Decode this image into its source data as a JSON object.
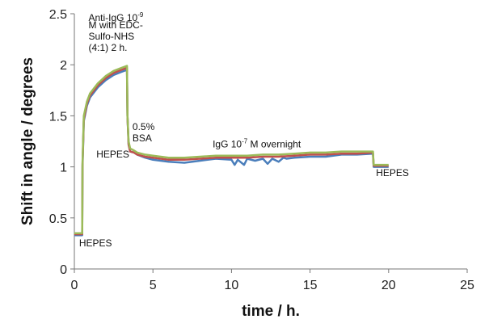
{
  "chart_data": {
    "type": "line",
    "title": "",
    "xlabel": "time / h.",
    "ylabel": "Shift in angle / degrees",
    "xlim": [
      0,
      25
    ],
    "ylim": [
      0,
      2.5
    ],
    "xticks": [
      "0",
      "5",
      "10",
      "15",
      "20",
      "25"
    ],
    "yticks": [
      "0",
      "0.5",
      "1",
      "1.5",
      "2",
      "2.5"
    ],
    "grid": false,
    "legend": "none",
    "series": [
      {
        "color": "#4a7ebb",
        "points": [
          [
            0,
            0.33
          ],
          [
            0.5,
            0.33
          ],
          [
            0.52,
            1.0
          ],
          [
            0.6,
            1.45
          ],
          [
            0.8,
            1.6
          ],
          [
            1.0,
            1.68
          ],
          [
            1.5,
            1.78
          ],
          [
            2.0,
            1.85
          ],
          [
            2.5,
            1.9
          ],
          [
            3.0,
            1.93
          ],
          [
            3.35,
            1.95
          ],
          [
            3.38,
            1.5
          ],
          [
            3.45,
            1.22
          ],
          [
            3.55,
            1.15
          ],
          [
            3.8,
            1.14
          ],
          [
            4.0,
            1.12
          ],
          [
            4.5,
            1.09
          ],
          [
            5.0,
            1.07
          ],
          [
            6.0,
            1.05
          ],
          [
            7.0,
            1.04
          ],
          [
            8.0,
            1.06
          ],
          [
            9.0,
            1.08
          ],
          [
            10.0,
            1.07
          ],
          [
            10.2,
            1.02
          ],
          [
            10.4,
            1.07
          ],
          [
            10.8,
            1.02
          ],
          [
            11.0,
            1.08
          ],
          [
            11.5,
            1.06
          ],
          [
            12.0,
            1.08
          ],
          [
            12.3,
            1.03
          ],
          [
            12.6,
            1.08
          ],
          [
            13.0,
            1.05
          ],
          [
            13.3,
            1.09
          ],
          [
            13.5,
            1.08
          ],
          [
            14.0,
            1.09
          ],
          [
            15.0,
            1.1
          ],
          [
            16.0,
            1.1
          ],
          [
            17.0,
            1.12
          ],
          [
            18.0,
            1.12
          ],
          [
            19.0,
            1.13
          ],
          [
            19.05,
            1.0
          ],
          [
            20.0,
            1.0
          ]
        ]
      },
      {
        "color": "#c0504d",
        "points": [
          [
            0,
            0.34
          ],
          [
            0.5,
            0.34
          ],
          [
            0.52,
            1.02
          ],
          [
            0.6,
            1.47
          ],
          [
            0.8,
            1.62
          ],
          [
            1.0,
            1.7
          ],
          [
            1.5,
            1.8
          ],
          [
            2.0,
            1.87
          ],
          [
            2.5,
            1.92
          ],
          [
            3.0,
            1.95
          ],
          [
            3.35,
            1.97
          ],
          [
            3.38,
            1.5
          ],
          [
            3.45,
            1.22
          ],
          [
            3.55,
            1.15
          ],
          [
            3.8,
            1.14
          ],
          [
            4.0,
            1.12
          ],
          [
            4.5,
            1.1
          ],
          [
            5.0,
            1.09
          ],
          [
            6.0,
            1.07
          ],
          [
            7.0,
            1.07
          ],
          [
            8.0,
            1.08
          ],
          [
            9.0,
            1.09
          ],
          [
            10.0,
            1.09
          ],
          [
            11.0,
            1.09
          ],
          [
            12.0,
            1.1
          ],
          [
            13.0,
            1.1
          ],
          [
            14.0,
            1.11
          ],
          [
            15.0,
            1.12
          ],
          [
            16.0,
            1.12
          ],
          [
            17.0,
            1.13
          ],
          [
            18.0,
            1.13
          ],
          [
            19.0,
            1.14
          ],
          [
            19.05,
            1.01
          ],
          [
            20.0,
            1.01
          ]
        ]
      },
      {
        "color": "#9bbb59",
        "points": [
          [
            0,
            0.35
          ],
          [
            0.5,
            0.35
          ],
          [
            0.52,
            1.04
          ],
          [
            0.6,
            1.5
          ],
          [
            0.8,
            1.64
          ],
          [
            1.0,
            1.72
          ],
          [
            1.5,
            1.82
          ],
          [
            2.0,
            1.89
          ],
          [
            2.5,
            1.94
          ],
          [
            3.0,
            1.97
          ],
          [
            3.35,
            1.99
          ],
          [
            3.38,
            1.5
          ],
          [
            3.45,
            1.25
          ],
          [
            3.55,
            1.18
          ],
          [
            3.8,
            1.16
          ],
          [
            4.0,
            1.14
          ],
          [
            4.5,
            1.12
          ],
          [
            5.0,
            1.11
          ],
          [
            6.0,
            1.09
          ],
          [
            7.0,
            1.09
          ],
          [
            8.0,
            1.1
          ],
          [
            9.0,
            1.11
          ],
          [
            10.0,
            1.11
          ],
          [
            11.0,
            1.11
          ],
          [
            12.0,
            1.12
          ],
          [
            13.0,
            1.12
          ],
          [
            14.0,
            1.13
          ],
          [
            15.0,
            1.14
          ],
          [
            16.0,
            1.14
          ],
          [
            17.0,
            1.15
          ],
          [
            18.0,
            1.15
          ],
          [
            19.0,
            1.15
          ],
          [
            19.05,
            1.02
          ],
          [
            20.0,
            1.02
          ]
        ]
      }
    ],
    "annotations": [
      {
        "lines": [
          "Anti-IgG 10|-9|",
          "M with EDC-",
          "Sulfo-NHS",
          "(4:1) 2 h."
        ],
        "x": 0.9,
        "y": 2.43
      },
      {
        "lines": [
          "0.5%",
          "BSA"
        ],
        "x": 3.7,
        "y": 1.36
      },
      {
        "lines": [
          "HEPES"
        ],
        "x": 1.4,
        "y": 1.09
      },
      {
        "lines": [
          "IgG 10|-7| M overnight"
        ],
        "x": 8.8,
        "y": 1.19
      },
      {
        "lines": [
          "HEPES"
        ],
        "x": 19.2,
        "y": 0.91
      },
      {
        "lines": [
          "HEPES"
        ],
        "x": 0.3,
        "y": 0.22
      }
    ]
  }
}
